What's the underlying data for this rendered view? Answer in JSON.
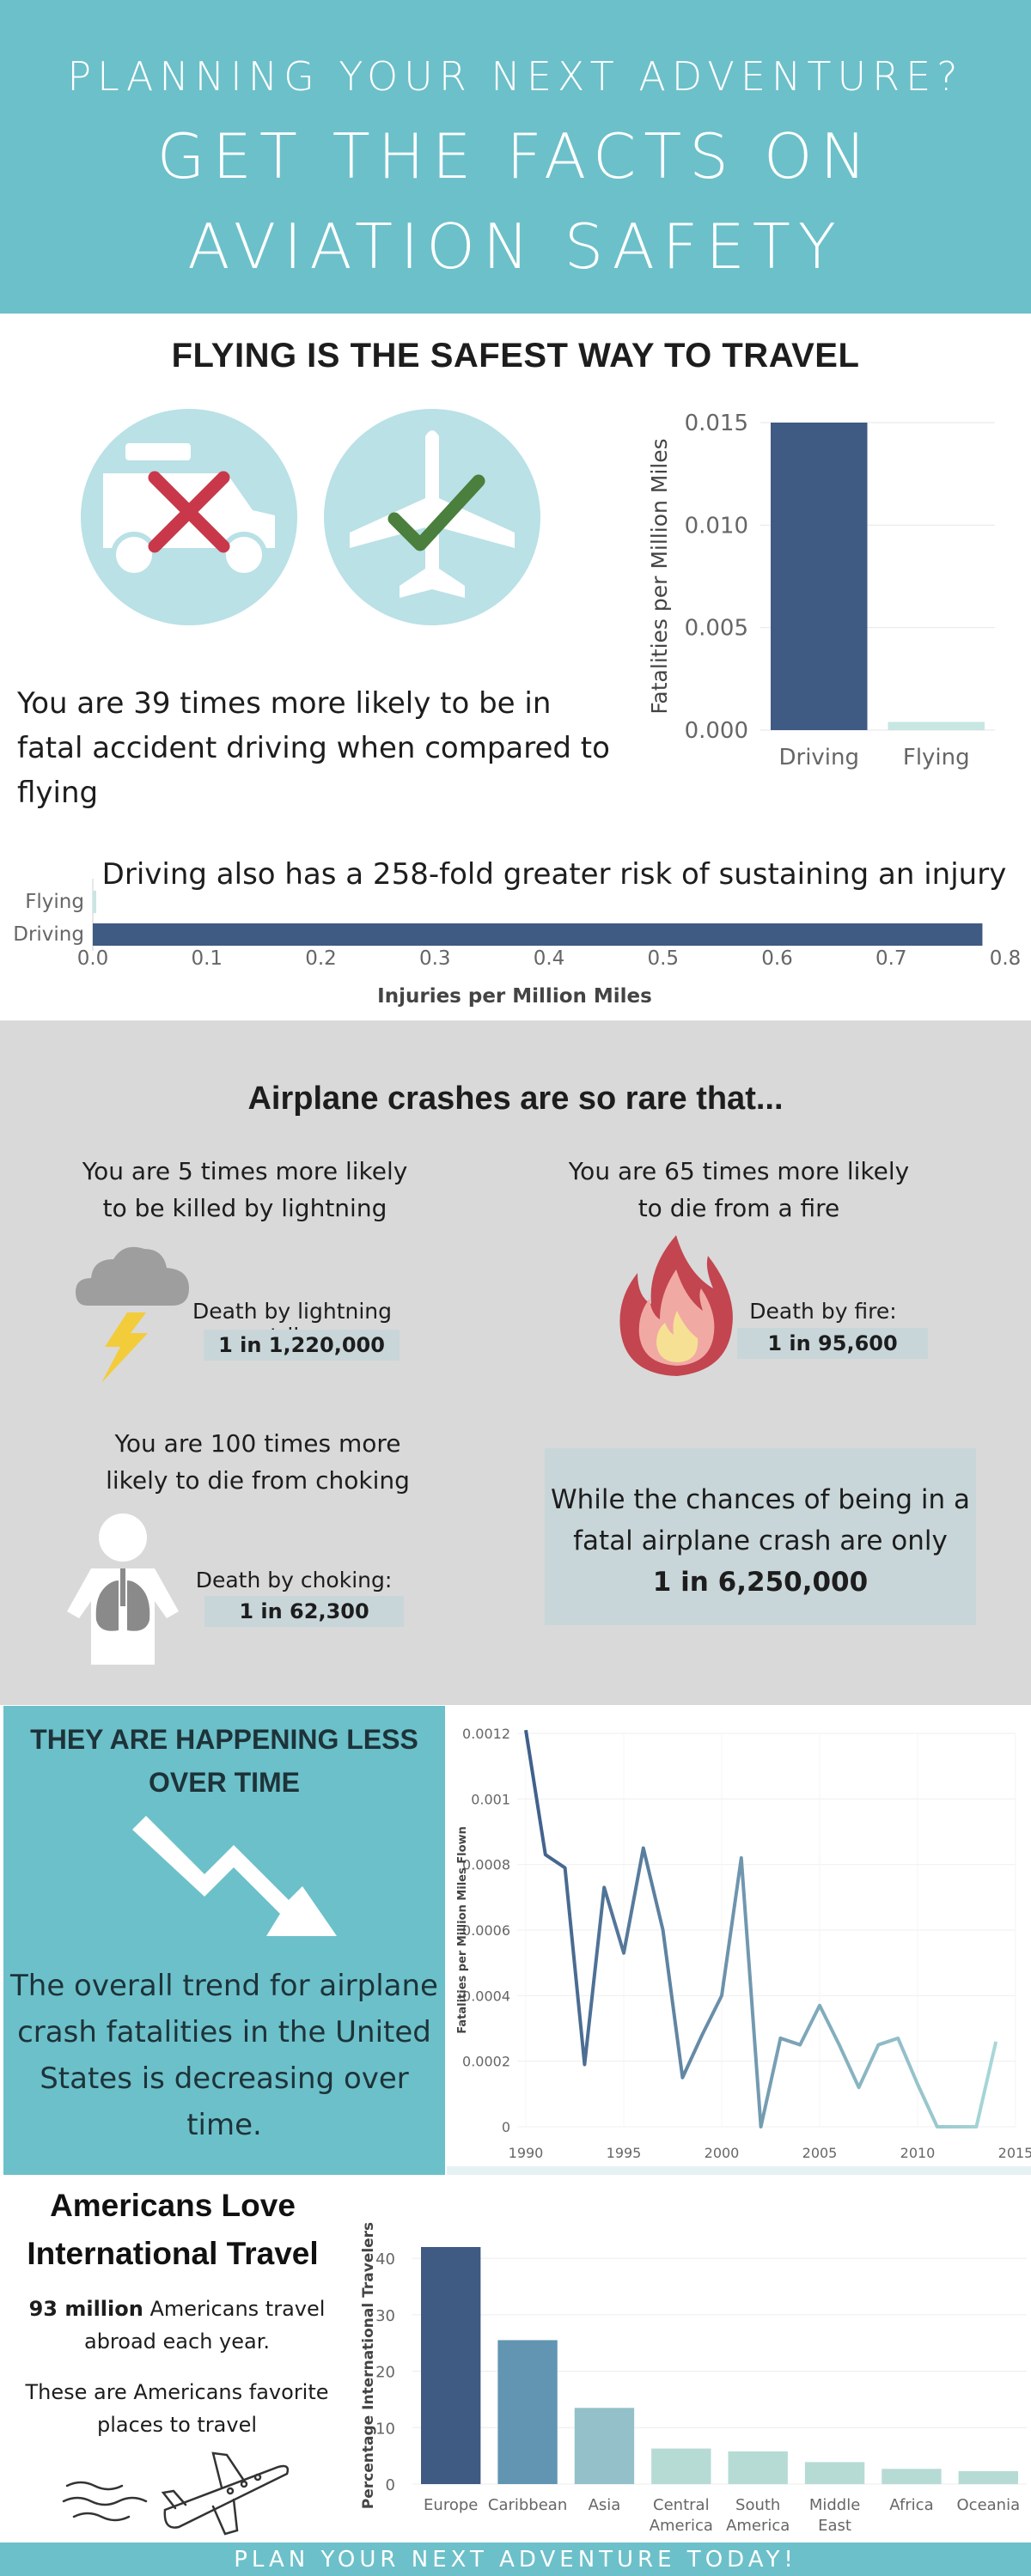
{
  "header": {
    "line1": "PLANNING YOUR NEXT ADVENTURE?",
    "line2": "GET THE FACTS ON",
    "line3": "AVIATION SAFETY"
  },
  "section_safest": {
    "title": "FLYING IS THE SAFEST WAY TO TRAVEL",
    "icons": [
      "car-icon",
      "cross-icon",
      "airplane-icon",
      "check-icon"
    ],
    "text": "You are 39 times more likely to be in fatal accident driving when compared to flying",
    "injury_annotation": "Driving also has a 258-fold greater risk of sustaining an injury"
  },
  "section_rare": {
    "title": "Airplane crashes are so rare that...",
    "lightning": {
      "text": "You are 5 times more likely to be killed by lightning",
      "label": "Death by lightning strike:",
      "odds": "1 in 1,220,000",
      "icon": "lightning-cloud-icon"
    },
    "fire": {
      "text": "You are 65 times more likely to die from a fire",
      "label": "Death by fire:",
      "odds": "1 in 95,600",
      "icon": "fire-icon"
    },
    "choking": {
      "text": "You are 100 times more likely to die from choking",
      "label": "Death by choking:",
      "odds": "1 in 62,300",
      "icon": "person-lungs-icon"
    },
    "crash": {
      "text": "While the chances of being in a fatal airplane crash are only",
      "odds": "1 in 6,250,000"
    }
  },
  "section_trend": {
    "title": "THEY ARE HAPPENING LESS OVER TIME",
    "text": "The overall trend for airplane crash fatalities in the United States is decreasing over time.",
    "icon": "down-trend-arrow-icon"
  },
  "section_travel": {
    "title": "Americans Love International Travel",
    "stat_bold": "93 million",
    "stat_rest": " Americans travel abroad each year.",
    "text": "These are Americans favorite places to travel",
    "icon": "airplane-sketch-icon"
  },
  "footer": {
    "text": "PLAN YOUR NEXT ADVENTURE TODAY!"
  },
  "colors": {
    "teal": "#6cc0c9",
    "navy": "#3f5a83",
    "mint": "#c8e6e2",
    "gray": "#d9d9d9",
    "badge": "#c9d6d9"
  },
  "chart_data": [
    {
      "id": "fatalities",
      "type": "bar",
      "categories": [
        "Driving",
        "Flying"
      ],
      "values": [
        0.015,
        0.0004
      ],
      "ylabel": "Fatalities per Million Miles",
      "ylim": [
        0,
        0.015
      ],
      "yticks": [
        "0.000",
        "0.005",
        "0.010",
        "0.015"
      ],
      "colors": [
        "#3f5a83",
        "#c8e6e2"
      ]
    },
    {
      "id": "injuries",
      "type": "bar",
      "orientation": "horizontal",
      "categories": [
        "Flying",
        "Driving"
      ],
      "values": [
        0.003,
        0.78
      ],
      "xlabel": "Injuries per Million Miles",
      "xlim": [
        0,
        0.8
      ],
      "xticks": [
        "0.0",
        "0.1",
        "0.2",
        "0.3",
        "0.4",
        "0.5",
        "0.6",
        "0.7",
        "0.8"
      ]
    },
    {
      "id": "trend",
      "type": "line",
      "x": [
        1990,
        1991,
        1992,
        1993,
        1994,
        1995,
        1996,
        1997,
        1998,
        1999,
        2000,
        2001,
        2002,
        2003,
        2004,
        2005,
        2006,
        2007,
        2008,
        2009,
        2010,
        2011,
        2012,
        2013,
        2014
      ],
      "y": [
        0.00121,
        0.00083,
        0.00079,
        0.00019,
        0.00073,
        0.00053,
        0.00085,
        0.0006,
        0.00015,
        0.00028,
        0.0004,
        0.00082,
        0.0,
        0.00027,
        0.00025,
        0.00037,
        0.00025,
        0.00012,
        0.00025,
        0.00027,
        0.00013,
        0.0,
        0.0,
        0.0,
        0.00026
      ],
      "ylabel": "Fatalities per Million Miles Flown",
      "xlim": [
        1990,
        2015
      ],
      "ylim": [
        0,
        0.0012
      ],
      "xticks": [
        "1990",
        "1995",
        "2000",
        "2005",
        "2010",
        "2015"
      ],
      "yticks": [
        "0",
        "0.0002",
        "0.0004",
        "0.0006",
        "0.0008",
        "0.001",
        "0.0012"
      ]
    },
    {
      "id": "destinations",
      "type": "bar",
      "categories": [
        "Europe",
        "Caribbean",
        "Asia",
        "Central America",
        "South America",
        "Middle East",
        "Africa",
        "Oceania"
      ],
      "values": [
        42,
        25.5,
        13.5,
        6.3,
        5.8,
        3.9,
        2.7,
        2.3
      ],
      "ylabel": "Percentage International Travelers",
      "ylim": [
        0,
        42
      ],
      "yticks": [
        "0",
        "10",
        "20",
        "30",
        "40"
      ],
      "colors": [
        "#3f5a83",
        "#6295b2",
        "#93c0c9",
        "#b6dbd5",
        "#b6dbd5",
        "#b6dbd5",
        "#b6dbd5",
        "#b6dbd5"
      ]
    }
  ]
}
